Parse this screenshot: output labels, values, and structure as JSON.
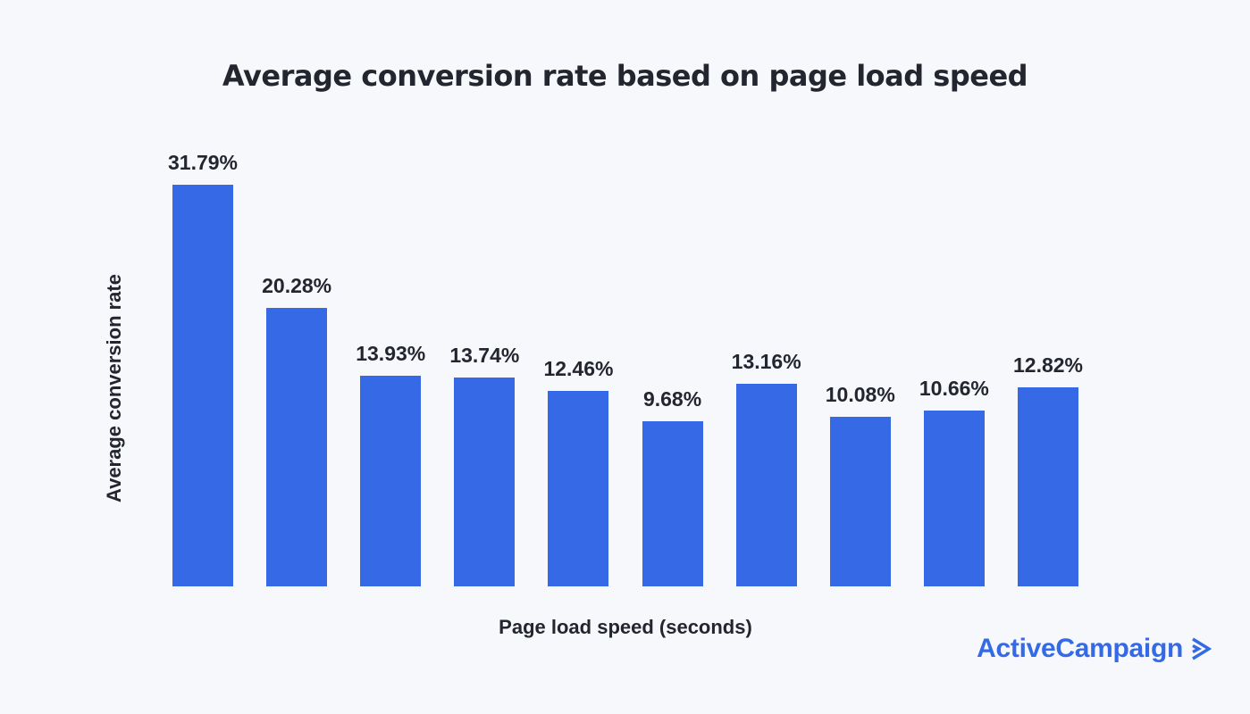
{
  "chart_data": {
    "type": "bar",
    "title": "Average conversion rate based on page load speed",
    "xlabel": "Page load speed (seconds)",
    "ylabel": "Average conversion rate",
    "values": [
      31.79,
      20.28,
      13.93,
      13.74,
      12.46,
      9.68,
      13.16,
      10.08,
      10.66,
      12.82
    ],
    "labels": [
      "31.79%",
      "20.28%",
      "13.93%",
      "13.74%",
      "12.46%",
      "9.68%",
      "13.16%",
      "10.08%",
      "10.66%",
      "12.82%"
    ],
    "bar_count": 10,
    "bar_color": "#3569E5",
    "grid": false,
    "legend": "none",
    "axis_tick_labels_visible": false,
    "value_labels_position": "above-bars"
  },
  "branding": {
    "logo_text": "ActiveCampaign",
    "logo_mark": "double-chevron-right",
    "logo_color": "#356AE6"
  },
  "colors": {
    "background": "#F7F8FC",
    "text_dark": "#23262F",
    "bar_blue": "#3569E5"
  }
}
